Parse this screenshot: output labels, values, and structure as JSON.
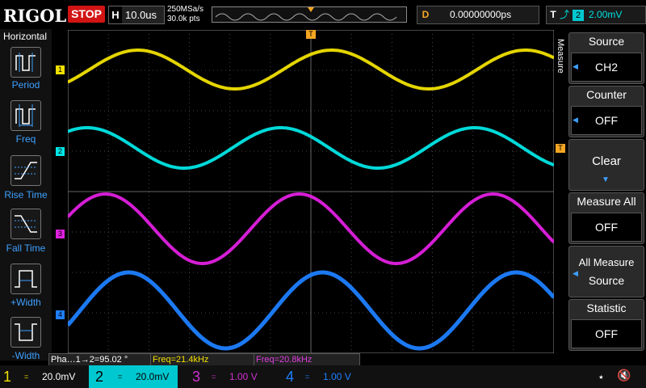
{
  "top": {
    "logo": "RIGOL",
    "run_state": "STOP",
    "horizontal_label": "H",
    "timebase": "10.0us",
    "sample_rate": "250MSa/s",
    "memory_depth": "30.0k pts",
    "delay_label": "D",
    "delay_value": "0.00000000ps",
    "trigger_label": "T",
    "trigger_source": "2",
    "trigger_level": "2.00mV"
  },
  "left_menu": {
    "title": "Horizontal",
    "items": [
      {
        "label": "Period",
        "icon": "period-icon"
      },
      {
        "label": "Freq",
        "icon": "frequency-icon"
      },
      {
        "label": "Rise Time",
        "icon": "rise-time-icon"
      },
      {
        "label": "Fall Time",
        "icon": "fall-time-icon"
      },
      {
        "label": "+Width",
        "icon": "positive-width-icon"
      },
      {
        "label": "-Width",
        "icon": "negative-width-icon"
      }
    ]
  },
  "right_menu": {
    "tab": "Measure",
    "items": [
      {
        "title": "Source",
        "value": "CH2"
      },
      {
        "title": "Counter",
        "value": "OFF"
      },
      {
        "title": "Clear",
        "value": ""
      },
      {
        "title": "Measure All",
        "value": "OFF"
      },
      {
        "title": "All Measure",
        "value": "Source"
      },
      {
        "title": "Statistic",
        "value": "OFF"
      }
    ]
  },
  "measurements": [
    {
      "text": "Pha…1→2=95.02 °",
      "color": "#ffffff"
    },
    {
      "text": "Freq=21.4kHz",
      "color": "#f5e000"
    },
    {
      "text": "Freq=20.8kHz",
      "color": "#e040e0"
    }
  ],
  "channels": [
    {
      "num": "1",
      "scale": "20.0mV",
      "color": "#f0e000",
      "active": true
    },
    {
      "num": "2",
      "scale": "20.0mV",
      "color": "#00e5e5",
      "active": true
    },
    {
      "num": "3",
      "scale": "1.00 V",
      "color": "#d030d0",
      "active": false
    },
    {
      "num": "4",
      "scale": "1.00 V",
      "color": "#1e7fff",
      "active": false
    }
  ],
  "markers": {
    "ch1": "1",
    "ch2": "2",
    "ch3": "3",
    "ch4": "4",
    "trigger": "T"
  },
  "colors": {
    "ch1": "#f0e000",
    "ch2": "#00e5e5",
    "ch3": "#e020e0",
    "ch4": "#1e7fff",
    "accent": "#3ea0ff",
    "trigger": "#f5a623"
  }
}
